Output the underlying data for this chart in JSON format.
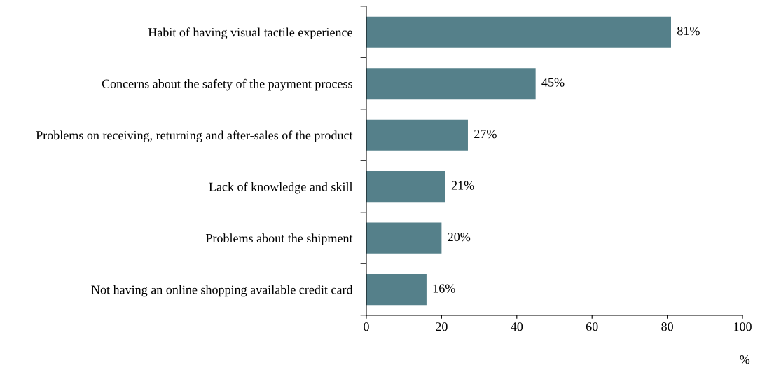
{
  "chart_data": {
    "type": "bar",
    "orientation": "horizontal",
    "xlabel": "%",
    "categories": [
      "Habit of having visual tactile experience",
      "Concerns about the safety of the payment process",
      "Problems on receiving, returning and after-sales of the product",
      "Lack of knowledge and skill",
      "Problems about the shipment",
      "Not having an online shopping available credit card"
    ],
    "values": [
      81,
      45,
      27,
      21,
      20,
      16
    ],
    "value_labels": [
      "81%",
      "45%",
      "27%",
      "21%",
      "20%",
      "16%"
    ],
    "color": "#55808a",
    "xlim": [
      0,
      100
    ],
    "xticks": [
      0,
      20,
      40,
      60,
      80,
      100
    ],
    "grid": false,
    "legend": false
  }
}
